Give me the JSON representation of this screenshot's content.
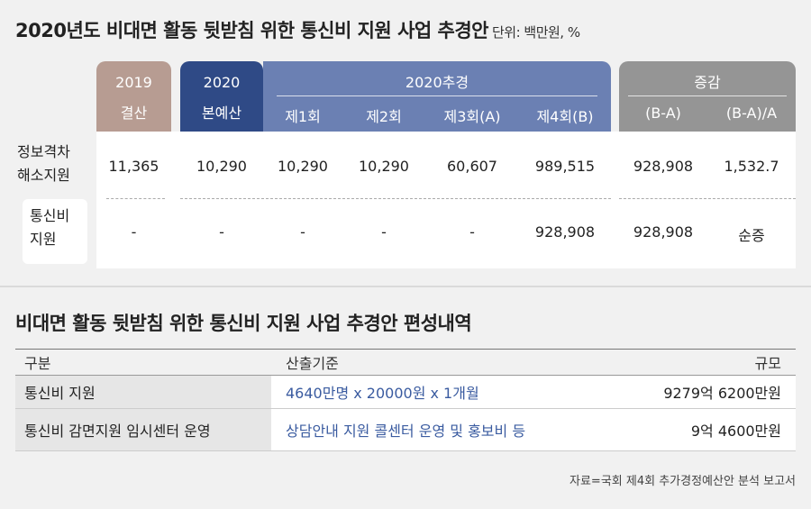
{
  "title1": "2020년도 비대면 활동 뒷받침 위한 통신비 지원 사업 추경안",
  "unit": "단위: 백만원, %",
  "header": {
    "y2019": [
      "2019",
      "결산"
    ],
    "y2020": [
      "2020",
      "본예산"
    ],
    "chugyeong": "2020추경",
    "chugyeong_sub": [
      "제1회",
      "제2회",
      "제3회(A)",
      "제4회(B)"
    ],
    "change": "증감",
    "change_sub": [
      "(B-A)",
      "(B-A)/A"
    ]
  },
  "rows": [
    {
      "label": [
        "정보격차",
        "해소지원"
      ],
      "values": [
        "11,365",
        "10,290",
        "10,290",
        "10,290",
        "60,607",
        "989,515",
        "928,908",
        "1,532.7"
      ]
    },
    {
      "label": [
        "통신비",
        "지원"
      ],
      "values": [
        "-",
        "-",
        "-",
        "-",
        "-",
        "928,908",
        "928,908",
        "순증"
      ]
    }
  ],
  "title2": "비대면 활동 뒷받침 위한 통신비 지원 사업 추경안 편성내역",
  "table2": {
    "headers": [
      "구분",
      "산출기준",
      "규모"
    ],
    "rows": [
      [
        "통신비 지원",
        "4640만명 x 20000원 x 1개월",
        "9279억 6200만원"
      ],
      [
        "통신비 감면지원 임시센터 운영",
        "상담안내 지원 콜센터 운영 및 홍보비 등",
        "9억 4600만원"
      ]
    ]
  },
  "source": "자료=국회 제4회 추가경정예산안 분석 보고서",
  "colors": {
    "y2019": "#b79c92",
    "y2020": "#2f4a86",
    "chugyeong": "#6b80b3",
    "change": "#959595",
    "basis_text": "#3a5ba0"
  }
}
